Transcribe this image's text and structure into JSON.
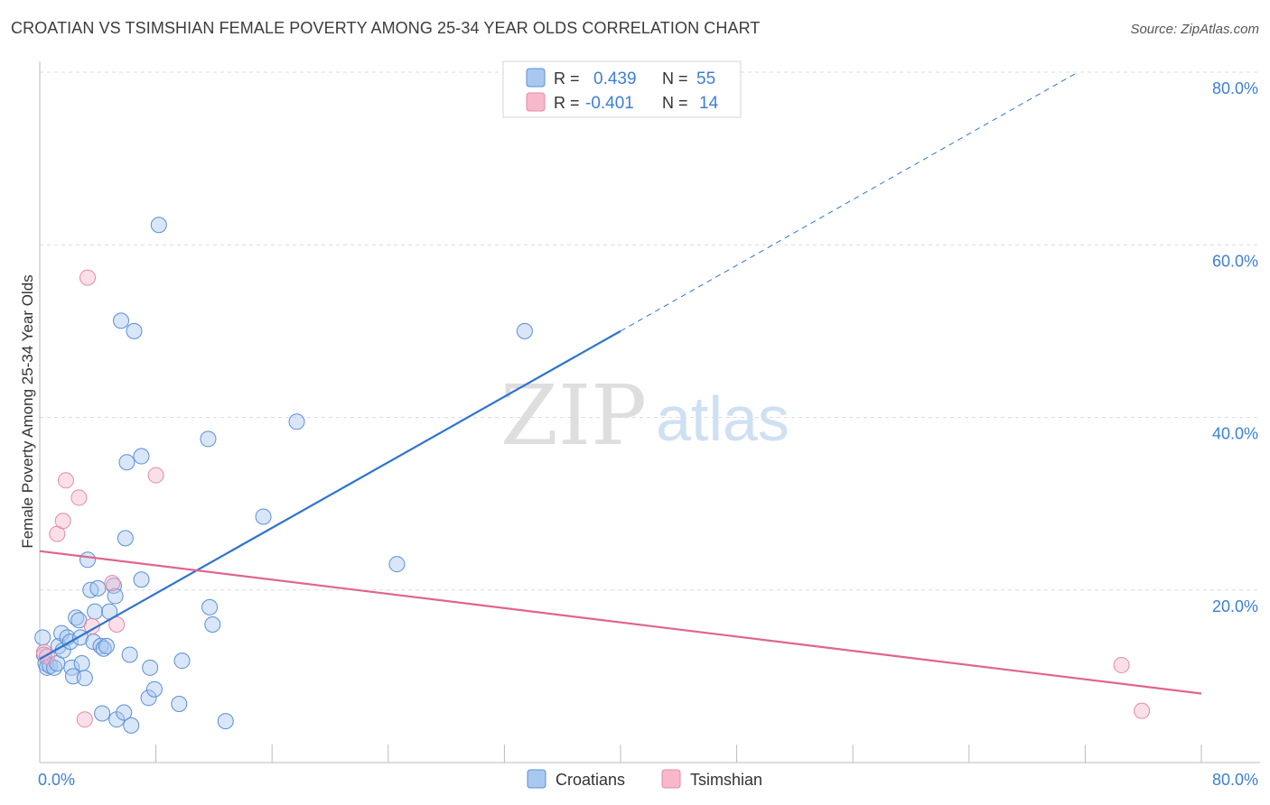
{
  "header": {
    "title": "CROATIAN VS TSIMSHIAN FEMALE POVERTY AMONG 25-34 YEAR OLDS CORRELATION CHART",
    "source": "Source: ZipAtlas.com"
  },
  "watermark": {
    "zip": "ZIP",
    "atlas": "atlas"
  },
  "colors": {
    "croatians_fill": "#a9c8f0",
    "croatians_stroke": "#5b8fd4",
    "croatians_line": "#2f74cf",
    "tsimshian_fill": "#f7b8cc",
    "tsimshian_stroke": "#e58aa8",
    "tsimshian_line": "#e0648e",
    "tick_label": "#3d7fd6",
    "grid": "#dcdcdc"
  },
  "legend": {
    "rows": [
      {
        "r_label": "R =",
        "r_value": "0.439",
        "n_label": "N =",
        "n_value": "55"
      },
      {
        "r_label": "R =",
        "r_value": "-0.401",
        "n_label": "N =",
        "n_value": "14"
      }
    ]
  },
  "bottom_legend": {
    "items": [
      "Croatians",
      "Tsimshian"
    ]
  },
  "chart_data": {
    "type": "scatter",
    "title": "CROATIAN VS TSIMSHIAN FEMALE POVERTY AMONG 25-34 YEAR OLDS CORRELATION CHART",
    "xlabel": "",
    "ylabel": "Female Poverty Among 25-34 Year Olds",
    "xlim": [
      0,
      80
    ],
    "ylim": [
      0,
      80
    ],
    "x_tick_labels": [
      "0.0%",
      "80.0%"
    ],
    "y_tick_labels": [
      "80.0%",
      "60.0%",
      "40.0%",
      "20.0%"
    ],
    "y_ticks": [
      80,
      60,
      40,
      20
    ],
    "grid": true,
    "legend_position": "top-center",
    "series": [
      {
        "name": "Croatians",
        "r": 0.439,
        "n": 55,
        "trend": {
          "x": [
            0,
            40
          ],
          "y": [
            12.0,
            50.0
          ],
          "dashed_to": [
            71.5,
            80.0
          ]
        },
        "points": [
          [
            0.2,
            14.5
          ],
          [
            0.3,
            12.5
          ],
          [
            0.4,
            11.5
          ],
          [
            0.5,
            11.0
          ],
          [
            0.7,
            11.2
          ],
          [
            1.0,
            11.0
          ],
          [
            1.2,
            11.5
          ],
          [
            1.3,
            13.5
          ],
          [
            1.5,
            15.0
          ],
          [
            1.6,
            13.0
          ],
          [
            1.9,
            14.5
          ],
          [
            2.1,
            14.0
          ],
          [
            2.2,
            11.0
          ],
          [
            2.3,
            10.0
          ],
          [
            2.5,
            16.8
          ],
          [
            2.7,
            16.5
          ],
          [
            2.8,
            14.5
          ],
          [
            2.9,
            11.5
          ],
          [
            3.1,
            9.8
          ],
          [
            3.3,
            23.5
          ],
          [
            3.5,
            20.0
          ],
          [
            3.7,
            14.0
          ],
          [
            3.8,
            17.5
          ],
          [
            4.0,
            20.2
          ],
          [
            4.2,
            13.5
          ],
          [
            4.4,
            13.2
          ],
          [
            4.6,
            13.5
          ],
          [
            4.8,
            17.5
          ],
          [
            5.1,
            20.5
          ],
          [
            5.2,
            19.3
          ],
          [
            4.3,
            5.7
          ],
          [
            5.3,
            5.0
          ],
          [
            5.6,
            51.2
          ],
          [
            5.8,
            5.8
          ],
          [
            5.9,
            26.0
          ],
          [
            6.0,
            34.8
          ],
          [
            6.2,
            12.5
          ],
          [
            6.3,
            4.3
          ],
          [
            6.5,
            50.0
          ],
          [
            7.0,
            35.5
          ],
          [
            7.0,
            21.2
          ],
          [
            7.5,
            7.5
          ],
          [
            7.6,
            11.0
          ],
          [
            7.9,
            8.5
          ],
          [
            8.2,
            62.3
          ],
          [
            9.6,
            6.8
          ],
          [
            9.8,
            11.8
          ],
          [
            11.6,
            37.5
          ],
          [
            11.7,
            18.0
          ],
          [
            11.9,
            16.0
          ],
          [
            12.8,
            4.8
          ],
          [
            15.4,
            28.5
          ],
          [
            17.7,
            39.5
          ],
          [
            24.6,
            23.0
          ],
          [
            33.4,
            50.0
          ]
        ]
      },
      {
        "name": "Tsimshian",
        "r": -0.401,
        "n": 14,
        "trend": {
          "x": [
            0,
            80
          ],
          "y": [
            24.5,
            8.0
          ]
        },
        "points": [
          [
            0.3,
            12.8
          ],
          [
            0.5,
            12.3
          ],
          [
            1.2,
            26.5
          ],
          [
            1.6,
            28.0
          ],
          [
            1.8,
            32.7
          ],
          [
            2.7,
            30.7
          ],
          [
            3.1,
            5.0
          ],
          [
            3.6,
            15.8
          ],
          [
            3.3,
            56.2
          ],
          [
            5.0,
            20.8
          ],
          [
            5.3,
            16.0
          ],
          [
            8.0,
            33.3
          ],
          [
            74.5,
            11.3
          ],
          [
            75.9,
            6.0
          ]
        ]
      }
    ]
  }
}
